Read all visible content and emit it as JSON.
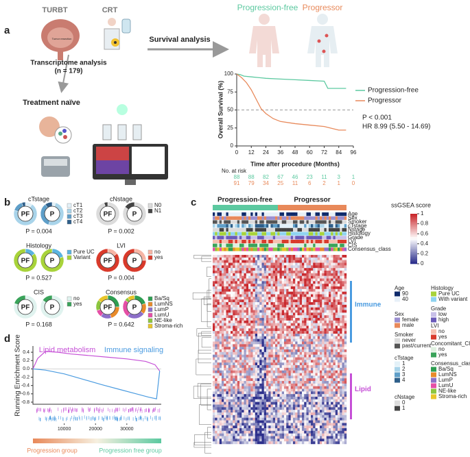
{
  "panel_a": {
    "label": "a",
    "turbt": "TURBT",
    "crt": "CRT",
    "tumor_resection": "Tumor resection",
    "transcriptome": "Transcriptome analysis",
    "n": "(n = 179)",
    "treatment": "Treatment naïve",
    "survival": "Survival analysis",
    "groups": [
      "Progression-free",
      "Progressor"
    ],
    "km": {
      "type": "line",
      "y_label": "Overall Survival (%)",
      "x_label": "Time after procedure (Months)",
      "xlim": [
        0,
        96
      ],
      "ylim": [
        0,
        100
      ],
      "xticks": [
        0,
        12,
        24,
        36,
        48,
        60,
        72,
        84,
        96
      ],
      "yticks": [
        0,
        25,
        50,
        75,
        100
      ],
      "reference_line": 50,
      "series": [
        {
          "name": "Progression-free",
          "color": "#5cc9a0",
          "x": [
            0,
            3,
            6,
            12,
            18,
            24,
            36,
            48,
            60,
            72,
            75,
            84,
            90
          ],
          "values": [
            100,
            99,
            97,
            96,
            95,
            94,
            93,
            92,
            91,
            90,
            80,
            80,
            80
          ]
        },
        {
          "name": "Progressor",
          "color": "#e8895a",
          "x": [
            0,
            4,
            8,
            12,
            16,
            20,
            24,
            30,
            36,
            48,
            60,
            72,
            84,
            90
          ],
          "values": [
            100,
            95,
            88,
            78,
            65,
            52,
            45,
            38,
            34,
            31,
            29,
            27,
            22,
            22
          ]
        }
      ],
      "stats": [
        "P < 0.001",
        "HR 8.99 (5.50 - 14.69)"
      ],
      "risk_table": {
        "title": "No. at risk",
        "rows": [
          [
            88,
            88,
            82,
            67,
            46,
            23,
            11,
            3,
            1
          ],
          [
            91,
            79,
            34,
            25,
            11,
            6,
            2,
            1,
            0
          ]
        ]
      }
    }
  },
  "panel_b": {
    "label": "b",
    "charts": [
      {
        "type": "donut",
        "title": "cTstage",
        "categories": [
          "cT1",
          "cT2",
          "cT3",
          "cT4"
        ],
        "colors": [
          "#e3f1f8",
          "#a9d4ea",
          "#5f9fc9",
          "#2e5f8a"
        ],
        "series": [
          {
            "name": "PF",
            "values": [
              10,
              70,
              15,
              5
            ]
          },
          {
            "name": "P",
            "values": [
              5,
              50,
              35,
              10
            ]
          }
        ],
        "p_value": "P = 0.004"
      },
      {
        "type": "donut",
        "title": "cNstage",
        "categories": [
          "N0",
          "N1"
        ],
        "colors": [
          "#dcdcdc",
          "#444444"
        ],
        "series": [
          {
            "name": "PF",
            "values": [
              95,
              5
            ]
          },
          {
            "name": "P",
            "values": [
              85,
              15
            ]
          }
        ],
        "p_value": "P = 0.002"
      },
      {
        "type": "donut",
        "title": "Histology",
        "categories": [
          "Pure UC",
          "Variant"
        ],
        "colors": [
          "#5ab4e0",
          "#a8d33a"
        ],
        "series": [
          {
            "name": "PF",
            "values": [
              15,
              85
            ]
          },
          {
            "name": "P",
            "values": [
              20,
              80
            ]
          }
        ],
        "p_value": "P = 0.527"
      },
      {
        "type": "donut",
        "title": "LVI",
        "categories": [
          "no",
          "yes"
        ],
        "colors": [
          "#f6b5a5",
          "#d93a2b"
        ],
        "series": [
          {
            "name": "PF",
            "values": [
              15,
              85
            ]
          },
          {
            "name": "P",
            "values": [
              25,
              75
            ]
          }
        ],
        "p_value": "P = 0.004"
      },
      {
        "type": "donut",
        "title": "CIS",
        "categories": [
          "no",
          "yes"
        ],
        "colors": [
          "#e0f3ef",
          "#3aa35a"
        ],
        "series": [
          {
            "name": "PF",
            "values": [
              80,
              20
            ]
          },
          {
            "name": "P",
            "values": [
              85,
              15
            ]
          }
        ],
        "p_value": "P = 0.168"
      },
      {
        "type": "donut",
        "title": "Consensus",
        "categories": [
          "Ba/Sq",
          "LumNS",
          "LumP",
          "LumU",
          "NE-like",
          "Stroma-rich"
        ],
        "colors": [
          "#2e9e52",
          "#e88a2a",
          "#8c6fc9",
          "#e54fa6",
          "#8cc63e",
          "#e8c52a"
        ],
        "series": [
          {
            "name": "PF",
            "values": [
              25,
              20,
              15,
              10,
              15,
              15
            ]
          },
          {
            "name": "P",
            "values": [
              20,
              15,
              25,
              25,
              5,
              10
            ]
          }
        ],
        "p_value": "P = 0.642"
      }
    ]
  },
  "panel_c": {
    "label": "c",
    "groups": [
      "Progression-free",
      "Progressor"
    ],
    "annotation_rows": [
      "Age",
      "Sex",
      "Smoker",
      "cTstage",
      "Nstage",
      "Histology",
      "Grade",
      "LVI",
      "CIS",
      "Consensus_class"
    ],
    "colorbar": {
      "title": "ssGSEA score",
      "ticks": [
        1,
        0.8,
        0.6,
        0.4,
        0.2,
        0
      ],
      "lim": [
        0,
        1
      ],
      "colors": [
        "#2c2f8c",
        "#ffffff",
        "#c9282d"
      ]
    },
    "clusters": [
      "Immune",
      "Lipid"
    ],
    "legends": [
      {
        "title": "Age",
        "items": [
          "90",
          "40"
        ],
        "colors": [
          "#0e2a6b",
          "#e8f0f8"
        ]
      },
      {
        "title": "Sex",
        "items": [
          "female",
          "male"
        ],
        "colors": [
          "#9b8fd0",
          "#e8895a"
        ]
      },
      {
        "title": "Smoker",
        "items": [
          "never",
          "past/current"
        ],
        "colors": [
          "#dcdcdc",
          "#555555"
        ]
      },
      {
        "title": "cTstage",
        "items": [
          "1",
          "2",
          "3",
          "4"
        ],
        "colors": [
          "#e3f1f8",
          "#a9d4ea",
          "#5f9fc9",
          "#2e5f8a"
        ]
      },
      {
        "title": "cNstage",
        "items": [
          "0",
          "1"
        ],
        "colors": [
          "#dcdcdc",
          "#444444"
        ]
      },
      {
        "title": "Histology",
        "items": [
          "Pure UC",
          "With variant"
        ],
        "colors": [
          "#a8d33a",
          "#8fd3f0"
        ]
      },
      {
        "title": "Grade",
        "items": [
          "low",
          "high"
        ],
        "colors": [
          "#c8c0e8",
          "#6a5ab8"
        ]
      },
      {
        "title": "LVI",
        "items": [
          "no",
          "yes"
        ],
        "colors": [
          "#f6c0b0",
          "#d93a2b"
        ]
      },
      {
        "title": "Concomitant_CIS",
        "items": [
          "no",
          "yes"
        ],
        "colors": [
          "#dff0e0",
          "#3aa35a"
        ]
      },
      {
        "title": "Consensus_class",
        "items": [
          "Ba/Sq",
          "LumNS",
          "LumP",
          "LumU",
          "NE-like",
          "Stroma-rich"
        ],
        "colors": [
          "#2e9e52",
          "#e88a2a",
          "#8c6fc9",
          "#e54fa6",
          "#8cc63e",
          "#e8c52a"
        ]
      }
    ]
  },
  "panel_d": {
    "label": "d",
    "type": "line",
    "y_label": "Running Enrichment Score",
    "xlim": [
      0,
      41000
    ],
    "ylim": [
      -0.85,
      0.55
    ],
    "xticks": [
      10000,
      20000,
      30000
    ],
    "yticks": [
      0.4,
      0.2,
      {
        "value": 0,
        "label": "0.0"
      },
      -0.2,
      -0.4,
      -0.6,
      -0.8
    ],
    "series": [
      {
        "name": "Lipid metabolism",
        "color": "#c54fd6",
        "x": [
          0,
          1500,
          4000,
          8000,
          12000,
          18000,
          24000,
          30000,
          36000,
          39000,
          40500
        ],
        "values": [
          0,
          0.25,
          0.42,
          0.4,
          0.36,
          0.32,
          0.28,
          0.24,
          0.18,
          0.1,
          -0.05
        ]
      },
      {
        "name": "Immune signaling",
        "color": "#4a9be0",
        "x": [
          0,
          4000,
          10000,
          16000,
          22000,
          28000,
          33000,
          37000,
          39500,
          40500
        ],
        "values": [
          0,
          -0.03,
          -0.12,
          -0.25,
          -0.38,
          -0.5,
          -0.6,
          -0.68,
          -0.72,
          -0.05
        ]
      }
    ],
    "groups": [
      "Progression group",
      "Progression free group"
    ]
  }
}
